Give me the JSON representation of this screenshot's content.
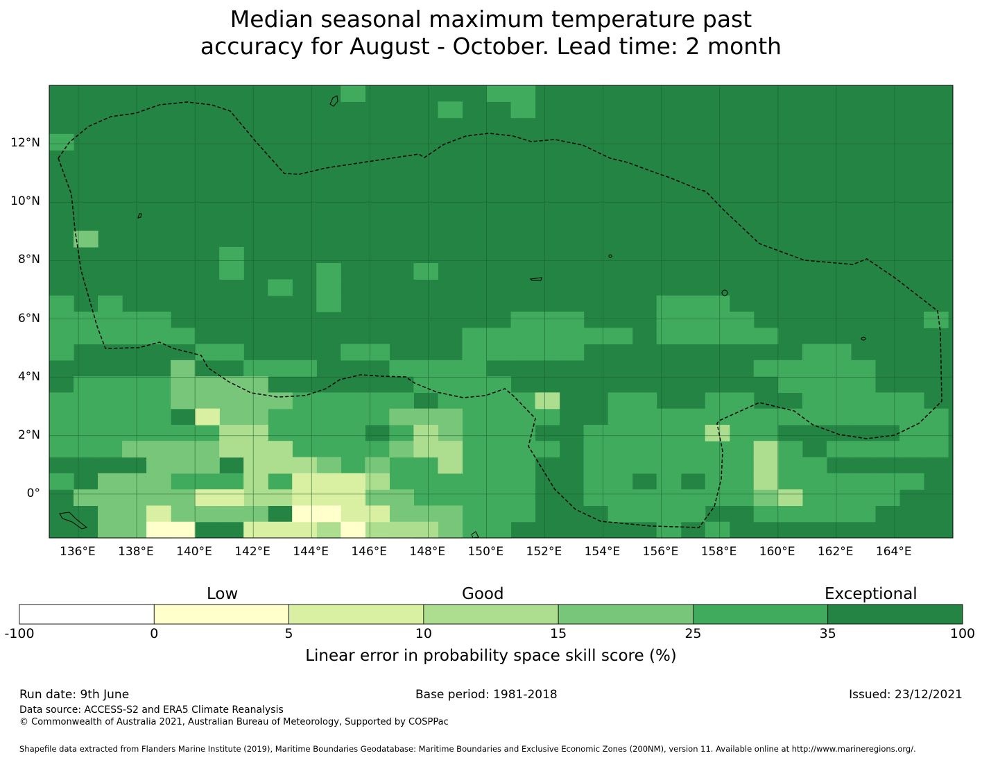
{
  "title": {
    "line1": "Median seasonal maximum temperature past",
    "line2": "accuracy for August - October. Lead time: 2 month"
  },
  "map": {
    "lon_labels": [
      "136°E",
      "138°E",
      "140°E",
      "142°E",
      "144°E",
      "146°E",
      "148°E",
      "150°E",
      "152°E",
      "154°E",
      "156°E",
      "158°E",
      "160°E",
      "162°E",
      "164°E"
    ],
    "lat_labels": [
      "12°N",
      "10°N",
      "8°N",
      "6°N",
      "4°N",
      "2°N",
      "0°"
    ],
    "lon_range": [
      135,
      166
    ],
    "lat_range": [
      -1.5,
      14
    ]
  },
  "colorbar": {
    "categories": [
      "Low",
      "Good",
      "Exceptional"
    ],
    "ticks": [
      "-100",
      "0",
      "5",
      "10",
      "15",
      "25",
      "35",
      "100"
    ],
    "colors": [
      "#ffffff",
      "#ffffcc",
      "#d9f0a3",
      "#addd8e",
      "#78c679",
      "#41ab5d",
      "#238443"
    ],
    "label": "Linear error in probability space skill score (%)"
  },
  "footer": {
    "run_date": "Run date: 9th June",
    "base_period": "Base period: 1981-2018",
    "issued": "Issued: 23/12/2021",
    "data_source": "Data source: ACCESS-S2 and ERA5 Climate Reanalysis",
    "copyright": "© Commonwealth of Australia 2021, Australian Bureau of Meteorology, Supported by COSPPac",
    "shapefile": "Shapefile data extracted from Flanders Marine Institute (2019), Maritime Boundaries Geodatabase: Maritime Boundaries and Exclusive Economic Zones (200NM), version 11. Available online at http://www.marineregions.org/."
  }
}
